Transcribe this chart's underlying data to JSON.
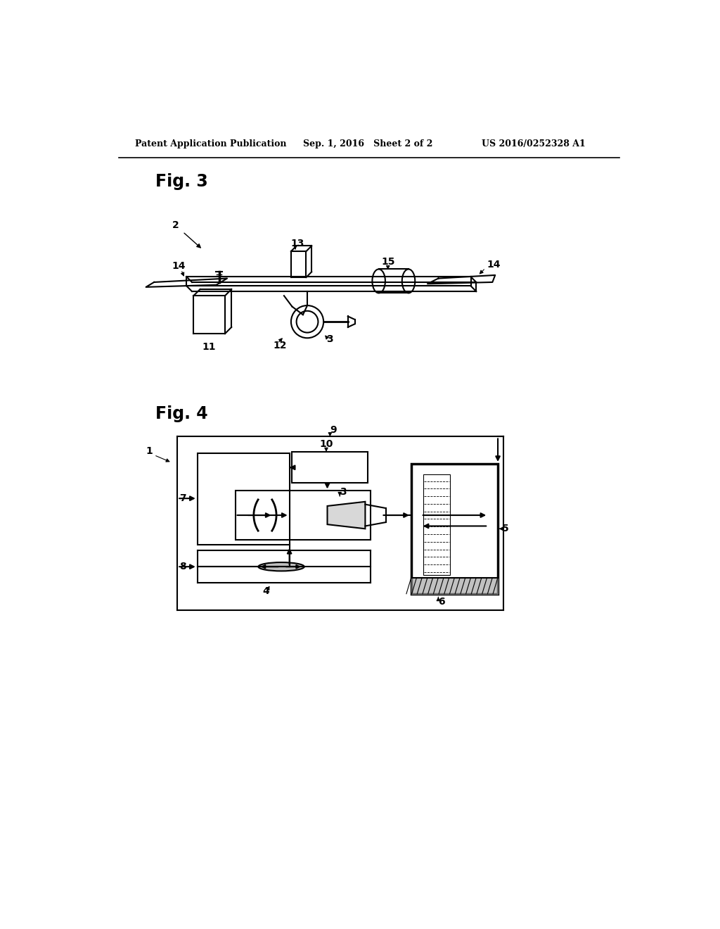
{
  "background_color": "#ffffff",
  "header_left": "Patent Application Publication",
  "header_mid": "Sep. 1, 2016   Sheet 2 of 2",
  "header_right": "US 2016/0252328 A1",
  "fig3_label": "Fig. 3",
  "fig4_label": "Fig. 4",
  "line_color": "#000000",
  "line_width": 1.5,
  "label_fontsize": 10,
  "figlabel_fontsize": 17
}
